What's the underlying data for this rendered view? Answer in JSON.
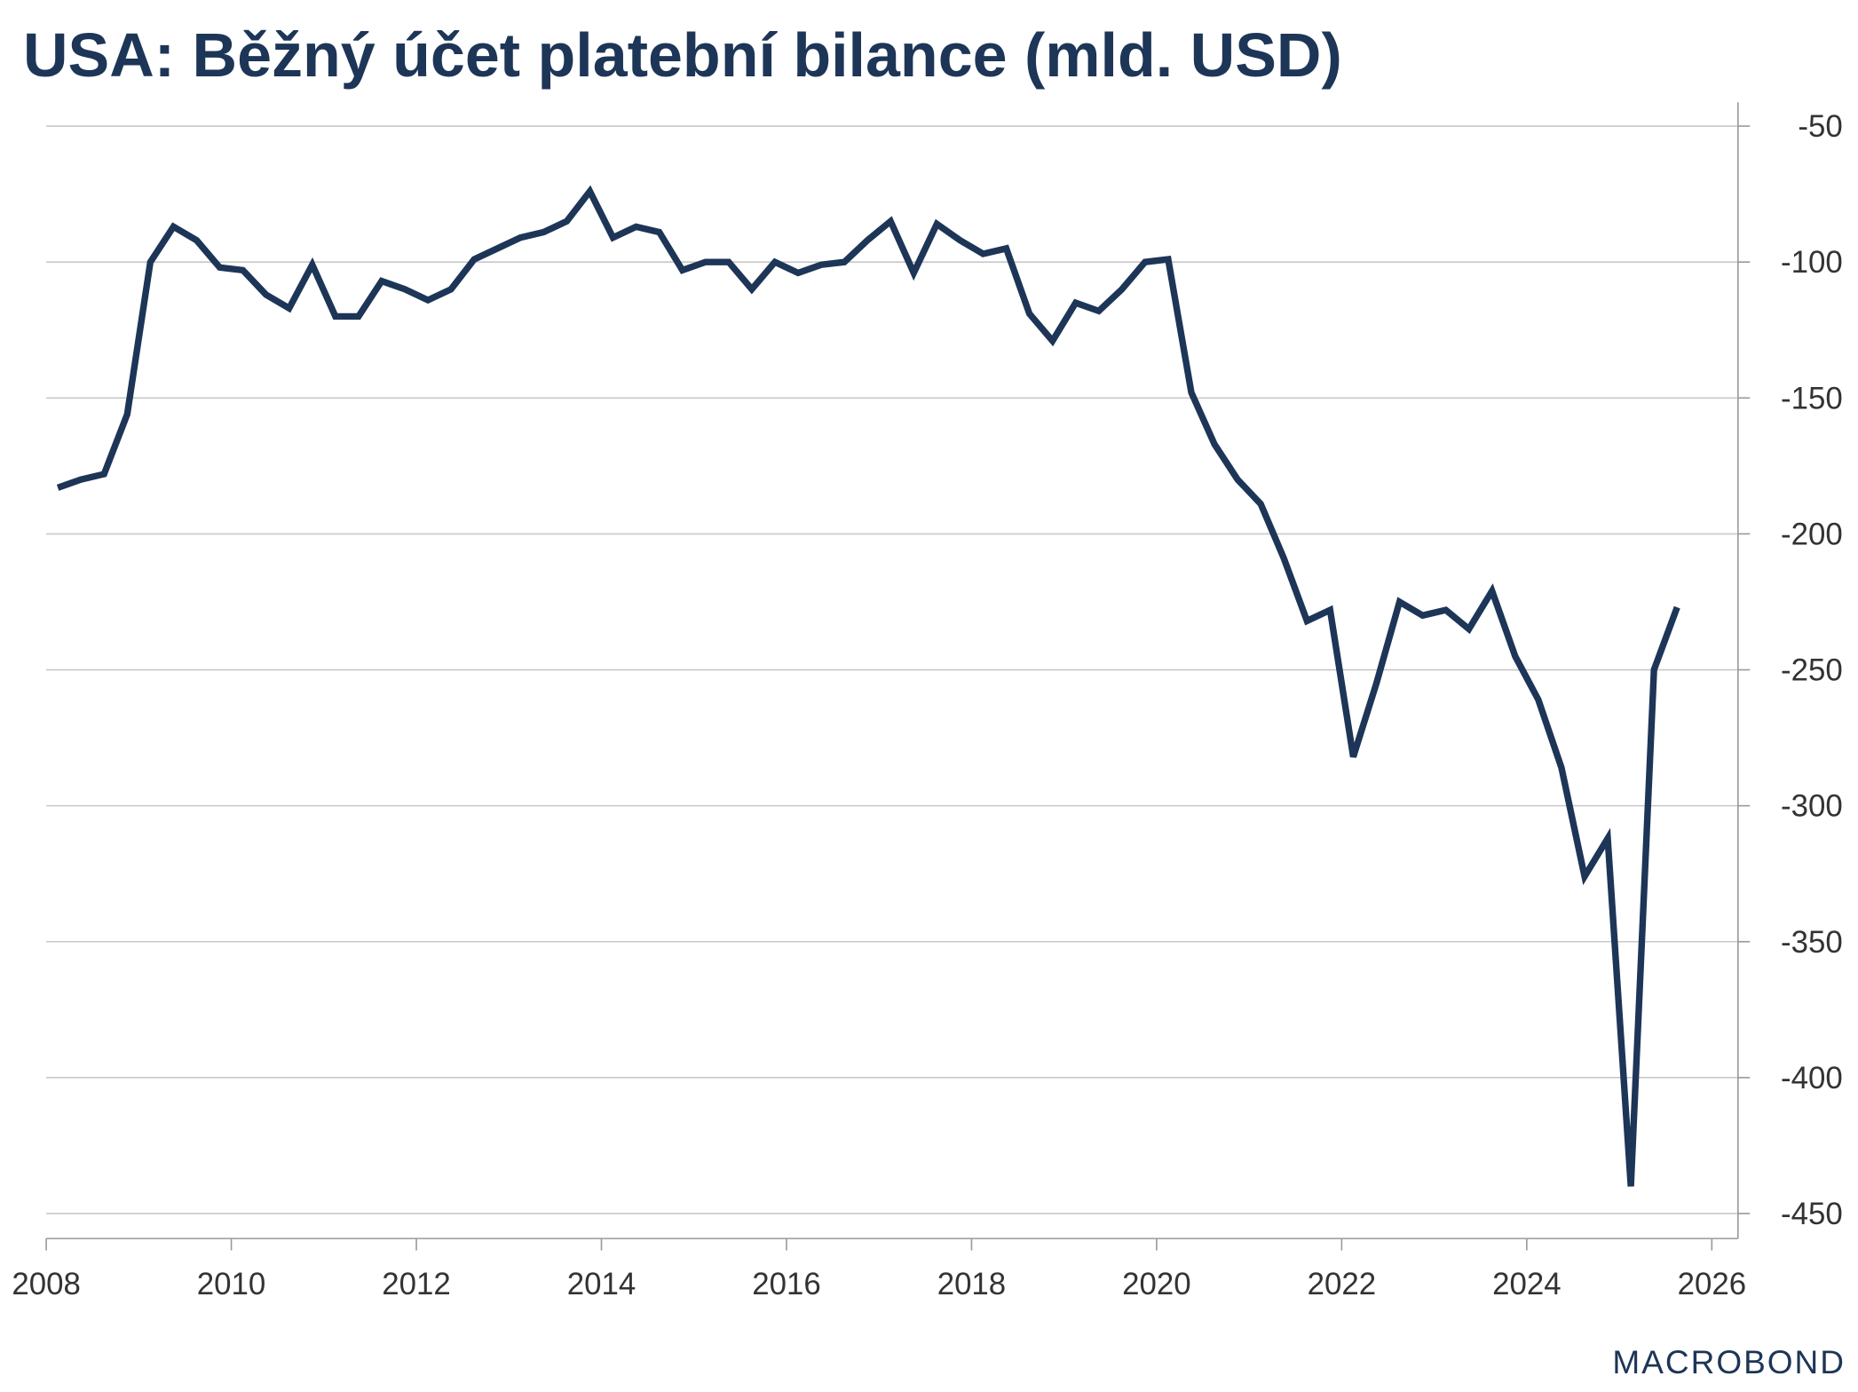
{
  "chart_data": {
    "type": "line",
    "title": "USA: Běžný účet platební bilance (mld. USD)",
    "xlabel": "",
    "ylabel": "",
    "xlim": [
      2008,
      2026
    ],
    "ylim": [
      -450,
      -50
    ],
    "x_ticks": [
      "2008",
      "2010",
      "2012",
      "2014",
      "2016",
      "2018",
      "2020",
      "2022",
      "2024",
      "2026"
    ],
    "y_ticks": [
      "-50",
      "-100",
      "-150",
      "-200",
      "-250",
      "-300",
      "-350",
      "-400",
      "-450"
    ],
    "y_axis_side": "right",
    "grid": "horizontal",
    "line_color": "#1d3557",
    "frequency": "quarterly",
    "x_start": "2008Q1",
    "series": [
      {
        "x": [
          "2008Q1",
          "2008Q2",
          "2008Q3",
          "2008Q4",
          "2009Q1",
          "2009Q2",
          "2009Q3",
          "2009Q4",
          "2010Q1",
          "2010Q2",
          "2010Q3",
          "2010Q4",
          "2011Q1",
          "2011Q2",
          "2011Q3",
          "2011Q4",
          "2012Q1",
          "2012Q2",
          "2012Q3",
          "2012Q4",
          "2013Q1",
          "2013Q2",
          "2013Q3",
          "2013Q4",
          "2014Q1",
          "2014Q2",
          "2014Q3",
          "2014Q4",
          "2015Q1",
          "2015Q2",
          "2015Q3",
          "2015Q4",
          "2016Q1",
          "2016Q2",
          "2016Q3",
          "2016Q4",
          "2017Q1",
          "2017Q2",
          "2017Q3",
          "2017Q4",
          "2018Q1",
          "2018Q2",
          "2018Q3",
          "2018Q4",
          "2019Q1",
          "2019Q2",
          "2019Q3",
          "2019Q4",
          "2020Q1",
          "2020Q2",
          "2020Q3",
          "2020Q4",
          "2021Q1",
          "2021Q2",
          "2021Q3",
          "2021Q4",
          "2022Q1",
          "2022Q2",
          "2022Q3",
          "2022Q4",
          "2023Q1",
          "2023Q2",
          "2023Q3",
          "2023Q4",
          "2024Q1",
          "2024Q2",
          "2024Q3",
          "2024Q4",
          "2025Q1",
          "2025Q2",
          "2025Q3"
        ],
        "values": [
          -183,
          -180,
          -178,
          -156,
          -100,
          -87,
          -92,
          -102,
          -103,
          -112,
          -117,
          -101,
          -120,
          -120,
          -107,
          -110,
          -114,
          -110,
          -99,
          -95,
          -91,
          -89,
          -85,
          -74,
          -91,
          -87,
          -89,
          -103,
          -100,
          -100,
          -110,
          -100,
          -104,
          -101,
          -100,
          -92,
          -85,
          -104,
          -86,
          -92,
          -97,
          -95,
          -119,
          -129,
          -115,
          -118,
          -110,
          -100,
          -99,
          -148,
          -167,
          -180,
          -189,
          -209,
          -232,
          -228,
          -282,
          -255,
          -225,
          -230,
          -228,
          -235,
          -221,
          -245,
          -261,
          -286,
          -326,
          -312,
          -440,
          -250,
          -227
        ]
      }
    ]
  },
  "logo": "MACROBOND"
}
